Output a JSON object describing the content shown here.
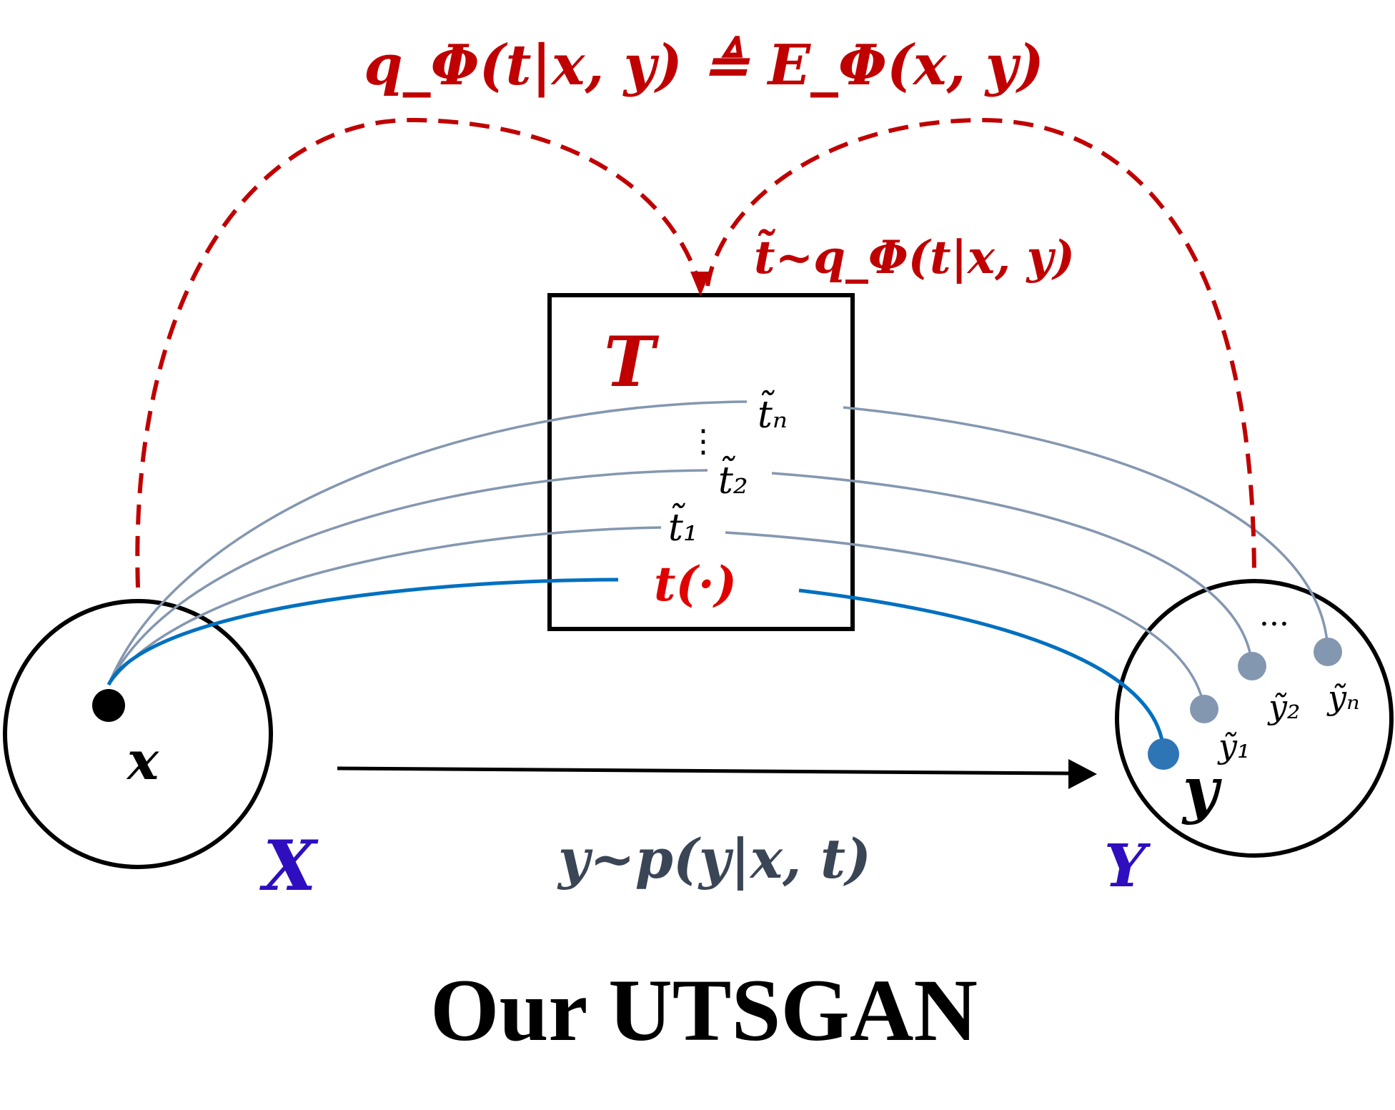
{
  "top_formula": "q_Φ(t|x, y) ≜ E_Φ(x, y)",
  "sample_formula": "t̃~q_Φ(t|x, y)",
  "box_label": "T",
  "t_labels": {
    "tn": "t̃ₙ",
    "dots": "⋮",
    "t2": "t̃₂",
    "t1": "t̃₁",
    "t_fn": "t(·)"
  },
  "x_point": "x",
  "y_point": "y",
  "domain_x": "X",
  "domain_y": "Y",
  "y_labels": {
    "y1": "ỹ₁",
    "y2": "ỹ₂",
    "yn": "ỹₙ",
    "dots": "···"
  },
  "arrow_formula": "y~p(y|x, t)",
  "caption": "Our UTSGAN",
  "colors": {
    "red": "#c00000",
    "blue": "#0070c0",
    "gray": "#8497b0",
    "domain": "#2e0ebf",
    "formula_dark": "#3a4556"
  }
}
